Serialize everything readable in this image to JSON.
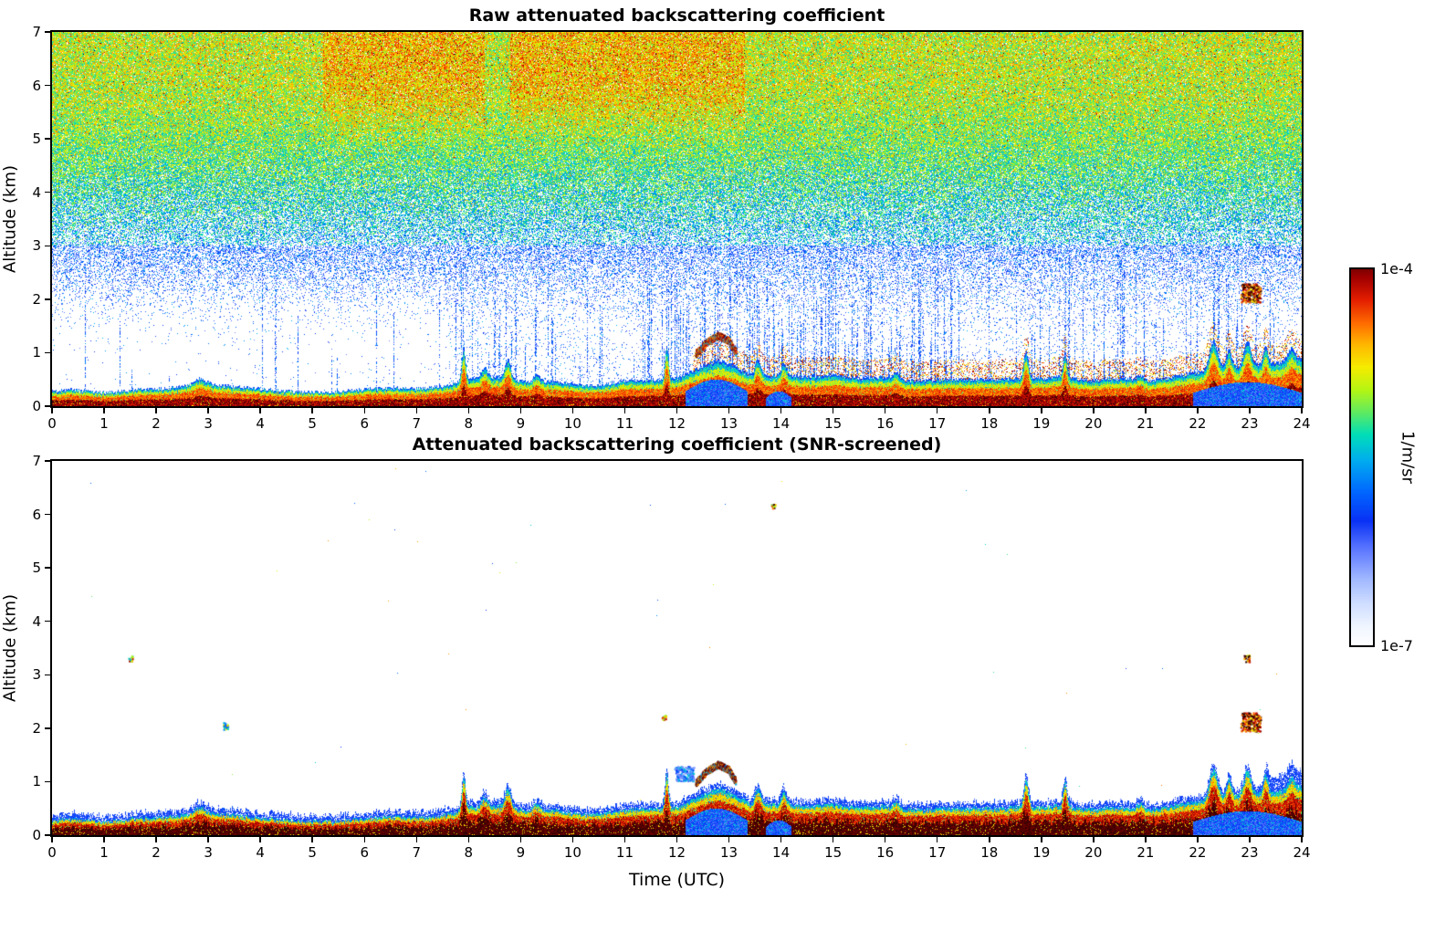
{
  "figure": {
    "background_color": "#ffffff",
    "text_color": "#000000"
  },
  "chart_data": {
    "type": "heatmap",
    "x": {
      "label": "Time (UTC)",
      "range": [
        0,
        24
      ],
      "ticks": [
        0,
        1,
        2,
        3,
        4,
        5,
        6,
        7,
        8,
        9,
        10,
        11,
        12,
        13,
        14,
        15,
        16,
        17,
        18,
        19,
        20,
        21,
        22,
        23,
        24
      ]
    },
    "y": {
      "label": "Altitude (km)",
      "range": [
        0,
        7
      ],
      "ticks": [
        0,
        1,
        2,
        3,
        4,
        5,
        6,
        7
      ]
    },
    "colorbar": {
      "label": "1/m/sr",
      "max_label": "1e-4",
      "min_label": "1e-7",
      "max_value": 0.0001,
      "min_value": 1e-07,
      "scale": "log"
    },
    "panels": [
      {
        "title": "Raw attenuated backscattering coefficient",
        "screened": false
      },
      {
        "title": "Attenuated backscattering coefficient (SNR-screened)",
        "screened": true
      }
    ],
    "scene": {
      "boundary_layer_top_km": {
        "t": [
          0,
          1,
          2,
          2.8,
          3.2,
          4,
          5,
          6,
          7,
          7.5,
          8,
          8.5,
          9,
          9.5,
          10,
          10.5,
          11,
          11.5,
          12,
          12.4,
          12.8,
          13.1,
          13.4,
          14,
          14.5,
          15,
          15.5,
          16,
          16.5,
          17,
          17.5,
          18,
          18.5,
          19,
          19.5,
          20,
          20.5,
          21,
          21.5,
          22,
          22.5,
          23,
          23.5,
          24
        ],
        "h": [
          0.28,
          0.28,
          0.3,
          0.45,
          0.38,
          0.3,
          0.28,
          0.3,
          0.33,
          0.4,
          0.5,
          0.53,
          0.5,
          0.45,
          0.4,
          0.42,
          0.45,
          0.5,
          0.55,
          0.7,
          0.85,
          0.75,
          0.6,
          0.6,
          0.55,
          0.55,
          0.5,
          0.55,
          0.5,
          0.5,
          0.48,
          0.5,
          0.55,
          0.5,
          0.55,
          0.5,
          0.5,
          0.5,
          0.55,
          0.6,
          0.72,
          0.8,
          0.8,
          0.88
        ]
      },
      "spikes": [
        {
          "t": 2.85,
          "dh": 0.1,
          "w": 0.15
        },
        {
          "t": 7.9,
          "dh": 0.6,
          "w": 0.05
        },
        {
          "t": 8.3,
          "dh": 0.18,
          "w": 0.08
        },
        {
          "t": 8.75,
          "dh": 0.35,
          "w": 0.08
        },
        {
          "t": 9.3,
          "dh": 0.12,
          "w": 0.1
        },
        {
          "t": 11.8,
          "dh": 0.62,
          "w": 0.045
        },
        {
          "t": 13.55,
          "dh": 0.3,
          "w": 0.07
        },
        {
          "t": 14.05,
          "dh": 0.25,
          "w": 0.07
        },
        {
          "t": 16.2,
          "dh": 0.12,
          "w": 0.08
        },
        {
          "t": 18.7,
          "dh": 0.52,
          "w": 0.06
        },
        {
          "t": 19.45,
          "dh": 0.45,
          "w": 0.05
        },
        {
          "t": 20.9,
          "dh": 0.1,
          "w": 0.08
        },
        {
          "t": 22.3,
          "dh": 0.55,
          "w": 0.11
        },
        {
          "t": 22.6,
          "dh": 0.35,
          "w": 0.07
        },
        {
          "t": 22.95,
          "dh": 0.45,
          "w": 0.09
        },
        {
          "t": 23.3,
          "dh": 0.35,
          "w": 0.06
        },
        {
          "t": 23.8,
          "dh": 0.22,
          "w": 0.09
        }
      ],
      "cold_pools": [
        {
          "t0": 12.15,
          "t1": 13.35,
          "h": 0.5
        },
        {
          "t0": 13.7,
          "t1": 14.2,
          "h": 0.28
        },
        {
          "t0": 21.9,
          "t1": 24.0,
          "h": 0.45
        }
      ],
      "cloud_band": {
        "points": [
          [
            12.35,
            0.98
          ],
          [
            12.55,
            1.2
          ],
          [
            12.78,
            1.33
          ],
          [
            12.98,
            1.24
          ],
          [
            13.12,
            1.02
          ]
        ],
        "thickness_km": 0.13,
        "panel": "both"
      },
      "isolated_echoes": [
        {
          "t0": 22.82,
          "t1": 23.2,
          "z0": 1.95,
          "z1": 2.3,
          "v": 1.0,
          "panel": "both"
        },
        {
          "t0": 22.88,
          "t1": 23.0,
          "z0": 3.25,
          "z1": 3.38,
          "v": 0.95,
          "panel": "bottom"
        },
        {
          "t0": 13.8,
          "t1": 13.88,
          "z0": 6.12,
          "z1": 6.22,
          "v": 0.9,
          "panel": "bottom"
        },
        {
          "t0": 3.27,
          "t1": 3.37,
          "z0": 1.98,
          "z1": 2.12,
          "v": 0.6,
          "panel": "bottom"
        },
        {
          "t0": 1.46,
          "t1": 1.54,
          "z0": 3.26,
          "z1": 3.36,
          "v": 0.78,
          "panel": "bottom"
        },
        {
          "t0": 11.7,
          "t1": 11.78,
          "z0": 2.16,
          "z1": 2.28,
          "v": 0.72,
          "panel": "bottom"
        },
        {
          "t0": 11.95,
          "t1": 12.32,
          "z0": 1.02,
          "z1": 1.3,
          "v": 0.33,
          "panel": "bottom"
        }
      ],
      "noise": {
        "raw_description": "dense colored speckle noise above boundary layer; density and value increase with altitude",
        "warm_patches_t": [
          [
            5.2,
            8.3
          ],
          [
            8.8,
            13.3
          ]
        ],
        "streak_bands_t": [
          [
            7.8,
            10.6
          ],
          [
            11.3,
            17.3
          ],
          [
            17.9,
            23.6
          ]
        ]
      }
    }
  }
}
